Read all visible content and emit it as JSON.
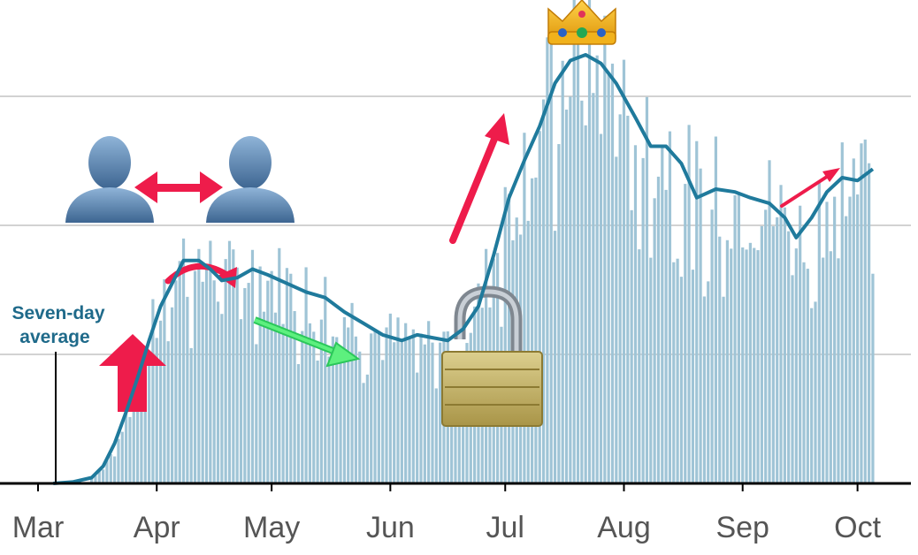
{
  "chart_data": {
    "type": "bar",
    "title": "",
    "xlabel": "",
    "ylabel": "",
    "x_tick_labels": [
      "Mar",
      "Apr",
      "May",
      "Jun",
      "Jul",
      "Aug",
      "Sep",
      "Oct"
    ],
    "x_ticks": [
      "Mar",
      "Apr",
      "May",
      "Jun",
      "Jul",
      "Aug",
      "Sep",
      "Oct"
    ],
    "ylim": [
      0,
      150
    ],
    "grid": "horizontal",
    "annotation": {
      "line1": "Seven-day",
      "line2": "average"
    },
    "series": [
      {
        "kind": "line",
        "color": "#1f7a9c",
        "points": [
          [
            "Mar 5",
            0
          ],
          [
            "Mar 10",
            0.5
          ],
          [
            "Mar 15",
            2
          ],
          [
            "Mar 18",
            6
          ],
          [
            "Mar 21",
            14
          ],
          [
            "Mar 24",
            25
          ],
          [
            "Mar 27",
            37
          ],
          [
            "Mar 30",
            50
          ],
          [
            "Apr 2",
            62
          ],
          [
            "Apr 5",
            70
          ],
          [
            "Apr 8",
            78
          ],
          [
            "Apr 12",
            78
          ],
          [
            "Apr 15",
            75
          ],
          [
            "Apr 18",
            71
          ],
          [
            "Apr 22",
            72
          ],
          [
            "Apr 26",
            75
          ],
          [
            "Apr 30",
            73
          ],
          [
            "May 5",
            70
          ],
          [
            "May 10",
            67
          ],
          [
            "May 15",
            65
          ],
          [
            "May 20",
            60
          ],
          [
            "May 25",
            56
          ],
          [
            "May 30",
            52
          ],
          [
            "Jun 4",
            50
          ],
          [
            "Jun 8",
            52
          ],
          [
            "Jun 12",
            51
          ],
          [
            "Jun 16",
            50
          ],
          [
            "Jun 20",
            54
          ],
          [
            "Jun 24",
            62
          ],
          [
            "Jun 28",
            80
          ],
          [
            "Jul 2",
            100
          ],
          [
            "Jul 6",
            113
          ],
          [
            "Jul 10",
            125
          ],
          [
            "Jul 14",
            140
          ],
          [
            "Jul 18",
            148
          ],
          [
            "Jul 22",
            150
          ],
          [
            "Jul 26",
            147
          ],
          [
            "Jul 30",
            140
          ],
          [
            "Aug 4",
            128
          ],
          [
            "Aug 8",
            118
          ],
          [
            "Aug 12",
            118
          ],
          [
            "Aug 16",
            112
          ],
          [
            "Aug 20",
            100
          ],
          [
            "Aug 25",
            103
          ],
          [
            "Aug 30",
            102
          ],
          [
            "Sep 3",
            100
          ],
          [
            "Sep 8",
            98
          ],
          [
            "Sep 12",
            93
          ],
          [
            "Sep 15",
            86
          ],
          [
            "Sep 19",
            93
          ],
          [
            "Sep 23",
            102
          ],
          [
            "Sep 27",
            107
          ],
          [
            "Oct 1",
            106
          ],
          [
            "Oct 5",
            110
          ]
        ]
      }
    ],
    "daily_bars_description_free": true,
    "emoji_annotations": [
      "crown",
      "padlock-open",
      "two-people-apart"
    ]
  }
}
